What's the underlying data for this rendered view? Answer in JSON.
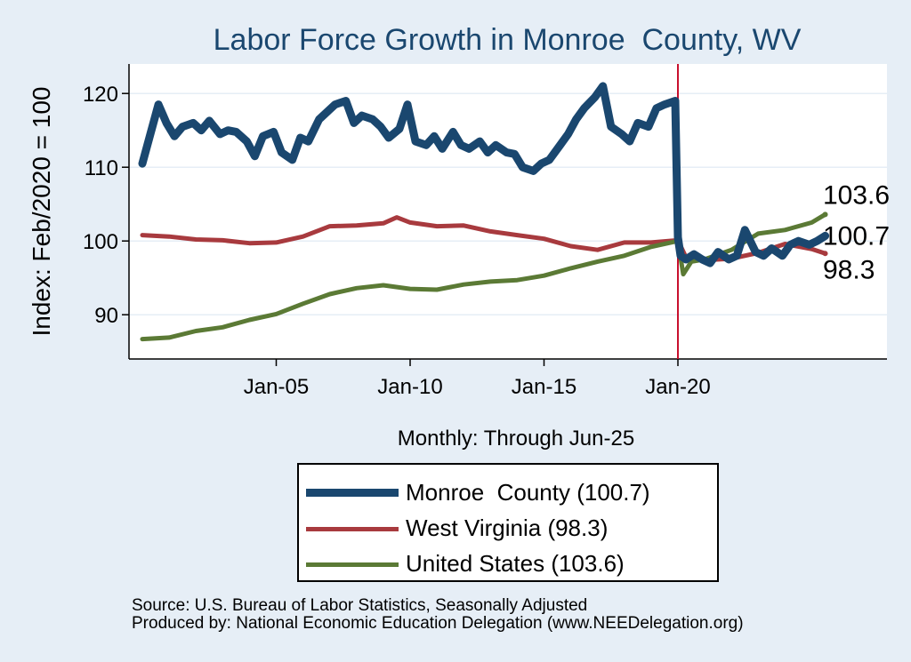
{
  "chart_data": {
    "type": "line",
    "title": "Labor Force Growth in Monroe  County, WV",
    "xlabel": "Monthly: Through Jun-25",
    "ylabel": "Index: Feb/2020 = 100",
    "ylim": [
      84,
      124
    ],
    "xlim": [
      2000.0,
      2028.0
    ],
    "y_ticks": [
      90,
      100,
      110,
      120
    ],
    "x_ticks": [
      {
        "value": 2005,
        "label": "Jan-05"
      },
      {
        "value": 2010,
        "label": "Jan-10"
      },
      {
        "value": 2015,
        "label": "Jan-15"
      },
      {
        "value": 2020,
        "label": "Jan-20"
      }
    ],
    "reference_line": {
      "x": 2020.0,
      "color": "#c8102e"
    },
    "grid": true,
    "series": [
      {
        "name": "Monroe  County",
        "legend_label": "Monroe  County (100.7)",
        "end_value": 100.7,
        "end_label": "100.7",
        "color": "#1a476f",
        "x": [
          2000.0,
          2000.3,
          2000.6,
          2000.9,
          2001.2,
          2001.5,
          2001.9,
          2002.2,
          2002.5,
          2002.9,
          2003.2,
          2003.5,
          2003.9,
          2004.2,
          2004.5,
          2004.9,
          2005.2,
          2005.6,
          2005.9,
          2006.2,
          2006.6,
          2006.9,
          2007.2,
          2007.6,
          2007.9,
          2008.2,
          2008.6,
          2008.9,
          2009.2,
          2009.6,
          2009.9,
          2010.2,
          2010.6,
          2010.9,
          2011.2,
          2011.6,
          2011.9,
          2012.2,
          2012.6,
          2012.9,
          2013.2,
          2013.6,
          2013.9,
          2014.2,
          2014.6,
          2014.9,
          2015.2,
          2015.6,
          2015.9,
          2016.2,
          2016.5,
          2016.9,
          2017.2,
          2017.5,
          2017.9,
          2018.2,
          2018.5,
          2018.9,
          2019.2,
          2019.5,
          2019.9,
          2020.0,
          2020.1,
          2020.3,
          2020.6,
          2020.9,
          2021.2,
          2021.5,
          2021.9,
          2022.2,
          2022.5,
          2022.9,
          2023.2,
          2023.5,
          2023.9,
          2024.2,
          2024.5,
          2024.9,
          2025.2,
          2025.5
        ],
        "values": [
          110.5,
          114.5,
          118.5,
          116.0,
          114.2,
          115.5,
          116.0,
          115.0,
          116.3,
          114.5,
          115.0,
          114.8,
          113.5,
          111.5,
          114.2,
          114.8,
          112.0,
          111.0,
          114.0,
          113.5,
          116.5,
          117.5,
          118.5,
          119.0,
          116.0,
          117.0,
          116.5,
          115.5,
          114.0,
          115.2,
          118.5,
          113.5,
          113.0,
          114.2,
          112.5,
          114.8,
          113.0,
          112.5,
          113.5,
          112.0,
          113.0,
          112.0,
          111.8,
          110.0,
          109.5,
          110.5,
          111.0,
          113.0,
          114.5,
          116.5,
          118.0,
          119.5,
          121.0,
          115.5,
          114.5,
          113.5,
          116.0,
          115.5,
          118.0,
          118.5,
          119.0,
          100.5,
          98.0,
          97.5,
          98.2,
          97.5,
          97.0,
          98.5,
          97.5,
          98.0,
          101.5,
          98.5,
          98.0,
          99.0,
          98.0,
          99.5,
          100.0,
          99.5,
          100.0,
          100.7
        ]
      },
      {
        "name": "West Virginia",
        "legend_label": "West Virginia (98.3)",
        "end_value": 98.3,
        "end_label": "98.3",
        "color": "#a83a3e",
        "x": [
          2000.0,
          2001.0,
          2002.0,
          2003.0,
          2004.0,
          2005.0,
          2006.0,
          2007.0,
          2008.0,
          2009.0,
          2009.5,
          2010.0,
          2011.0,
          2012.0,
          2013.0,
          2014.0,
          2015.0,
          2016.0,
          2017.0,
          2018.0,
          2019.0,
          2020.0,
          2020.3,
          2021.0,
          2022.0,
          2023.0,
          2024.0,
          2025.0,
          2025.5
        ],
        "values": [
          100.8,
          100.6,
          100.2,
          100.1,
          99.7,
          99.8,
          100.6,
          102.0,
          102.1,
          102.4,
          103.2,
          102.5,
          102.0,
          102.1,
          101.3,
          100.8,
          100.3,
          99.3,
          98.8,
          99.8,
          99.8,
          100.1,
          97.8,
          97.4,
          97.6,
          98.4,
          99.6,
          98.9,
          98.3
        ]
      },
      {
        "name": "United States",
        "legend_label": "United States (103.6)",
        "end_value": 103.6,
        "end_label": "103.6",
        "color": "#5b7a35",
        "x": [
          2000.0,
          2001.0,
          2002.0,
          2003.0,
          2004.0,
          2005.0,
          2006.0,
          2007.0,
          2008.0,
          2009.0,
          2010.0,
          2011.0,
          2012.0,
          2013.0,
          2014.0,
          2015.0,
          2016.0,
          2017.0,
          2018.0,
          2019.0,
          2020.0,
          2020.2,
          2020.5,
          2021.0,
          2022.0,
          2023.0,
          2024.0,
          2025.0,
          2025.5
        ],
        "values": [
          86.7,
          86.9,
          87.8,
          88.3,
          89.3,
          90.1,
          91.5,
          92.8,
          93.6,
          94.0,
          93.5,
          93.4,
          94.1,
          94.5,
          94.7,
          95.3,
          96.3,
          97.2,
          98.0,
          99.2,
          100.0,
          95.5,
          97.2,
          97.5,
          98.8,
          101.0,
          101.5,
          102.5,
          103.6
        ]
      }
    ],
    "source_lines": [
      "Source: U.S. Bureau of Labor Statistics, Seasonally Adjusted",
      "Produced by: National Economic Education Delegation (www.NEEDelegation.org)"
    ]
  }
}
